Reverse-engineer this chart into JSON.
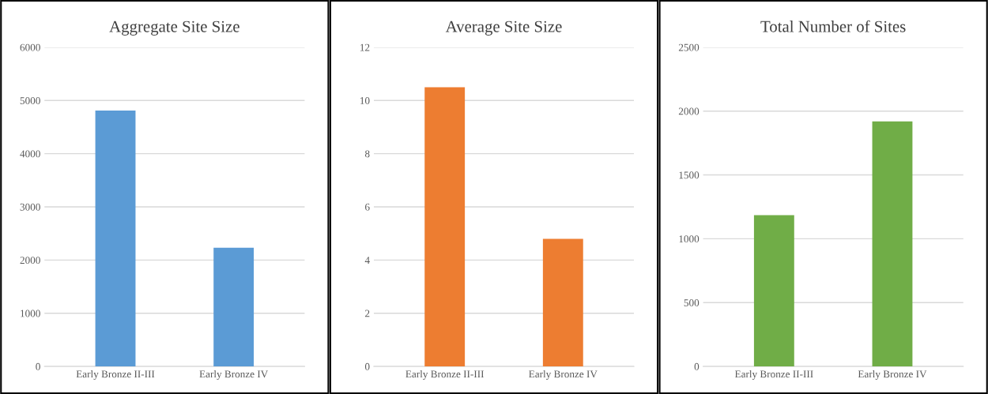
{
  "chart_data": [
    {
      "type": "bar",
      "title": "Aggregate Site Size",
      "categories": [
        "Early Bronze II-III",
        "Early Bronze IV"
      ],
      "values": [
        4810,
        2230
      ],
      "color": "#5b9bd5",
      "ylim": [
        0,
        6000
      ],
      "yticks": [
        0,
        1000,
        2000,
        3000,
        4000,
        5000,
        6000
      ],
      "grid": "y"
    },
    {
      "type": "bar",
      "title": "Average Site Size",
      "categories": [
        "Early Bronze II-III",
        "Early Bronze IV"
      ],
      "values": [
        10.5,
        4.8
      ],
      "color": "#ed7d31",
      "ylim": [
        0,
        12
      ],
      "yticks": [
        0,
        2,
        4,
        6,
        8,
        10,
        12
      ],
      "grid": "y"
    },
    {
      "type": "bar",
      "title": "Total Number of Sites",
      "categories": [
        "Early Bronze II-III",
        "Early Bronze IV"
      ],
      "values": [
        1185,
        1920
      ],
      "color": "#70ad47",
      "ylim": [
        0,
        2500
      ],
      "yticks": [
        0,
        500,
        1000,
        1500,
        2000,
        2500
      ],
      "grid": "y"
    }
  ]
}
